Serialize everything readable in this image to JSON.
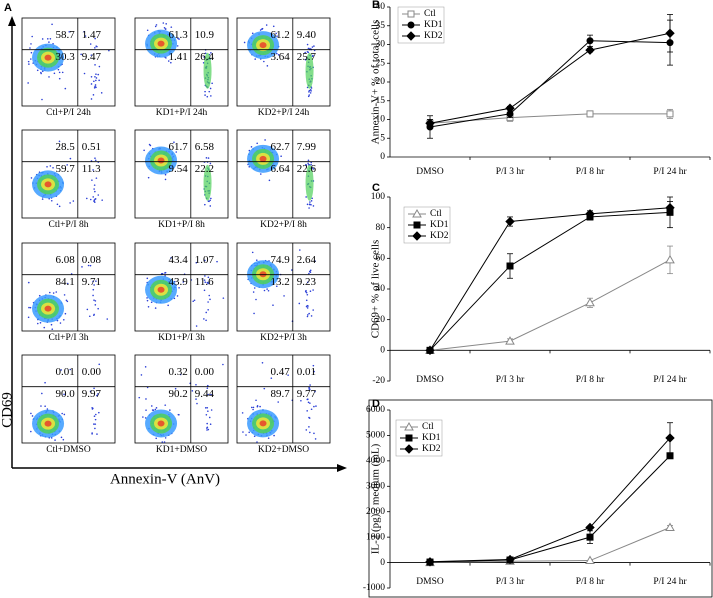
{
  "figure_label": "A",
  "flow_panels": {
    "y_axis_label": "CD69",
    "x_axis_label": "Annexin-V (AnV)",
    "panels": [
      {
        "caption": "Ctl+P/I 24h",
        "q1": "58.7",
        "q2": "1.47",
        "q4": "30.3",
        "q3": "9.47"
      },
      {
        "caption": "KD1+P/I 24h",
        "q1": "61.3",
        "q2": "10.9",
        "q4": "1.41",
        "q3": "26.4"
      },
      {
        "caption": "KD2+P/I 24h",
        "q1": "61.2",
        "q2": "9.40",
        "q4": "3.64",
        "q3": "25.7"
      },
      {
        "caption": "Ctl+P/I 8h",
        "q1": "28.5",
        "q2": "0.51",
        "q4": "59.7",
        "q3": "11.3"
      },
      {
        "caption": "KD1+P/I 8h",
        "q1": "61.7",
        "q2": "6.58",
        "q4": "9.54",
        "q3": "22.2"
      },
      {
        "caption": "KD2+P/I 8h",
        "q1": "62.7",
        "q2": "7.99",
        "q4": "6.64",
        "q3": "22.6"
      },
      {
        "caption": "Ctl+P/I 3h",
        "q1": "6.08",
        "q2": "0.08",
        "q4": "84.1",
        "q3": "9.71"
      },
      {
        "caption": "KD1+P/I 3h",
        "q1": "43.4",
        "q2": "1.07",
        "q4": "43.9",
        "q3": "11.6"
      },
      {
        "caption": "KD2+P/I 3h",
        "q1": "74.9",
        "q2": "2.64",
        "q4": "13.2",
        "q3": "9.23"
      },
      {
        "caption": "Ctl+DMSO",
        "q1": "0.01",
        "q2": "0.00",
        "q4": "90.0",
        "q3": "9.97"
      },
      {
        "caption": "KD1+DMSO",
        "q1": "0.32",
        "q2": "0.00",
        "q4": "90.2",
        "q3": "9.44"
      },
      {
        "caption": "KD2+DMSO",
        "q1": "0.47",
        "q2": "0.01",
        "q4": "89.7",
        "q3": "9.77"
      }
    ]
  },
  "chart_data": [
    {
      "type": "line",
      "panel_label": "B",
      "y_label": "Annexin-V+ % of total cells",
      "categories": [
        "DMSO",
        "P/I 3 hr",
        "P/I 8 hr",
        "P/I 24 hr"
      ],
      "ylim": [
        0,
        40
      ],
      "yticks": [
        0,
        5,
        10,
        15,
        20,
        25,
        30,
        35,
        40
      ],
      "series": [
        {
          "name": "Ctl",
          "color": "#888888",
          "marker": "square",
          "filled": false,
          "values": [
            9,
            10.5,
            11.5,
            11.5
          ],
          "errors": [
            1,
            1,
            0.8,
            1.2
          ]
        },
        {
          "name": "KD1",
          "color": "#000000",
          "marker": "circle",
          "filled": true,
          "values": [
            8,
            11.5,
            31,
            30.5
          ],
          "errors": [
            3,
            1,
            1.5,
            6
          ]
        },
        {
          "name": "KD2",
          "color": "#000000",
          "marker": "diamond",
          "filled": true,
          "values": [
            9,
            13,
            28.5,
            33
          ],
          "errors": [
            1,
            0.5,
            0.5,
            5
          ]
        }
      ]
    },
    {
      "type": "line",
      "panel_label": "C",
      "y_label": "CD69+ % of live cells",
      "categories": [
        "DMSO",
        "P/I 3 hr",
        "P/I 8 hr",
        "P/I 24 hr"
      ],
      "ylim": [
        -20,
        100
      ],
      "yticks": [
        -20,
        0,
        20,
        40,
        60,
        80,
        100
      ],
      "series": [
        {
          "name": "Ctl",
          "color": "#888888",
          "marker": "triangle",
          "filled": false,
          "values": [
            0,
            6,
            31,
            59
          ],
          "errors": [
            0,
            1.5,
            3,
            9
          ]
        },
        {
          "name": "KD1",
          "color": "#000000",
          "marker": "square",
          "filled": true,
          "values": [
            0,
            55,
            87,
            90
          ],
          "errors": [
            0,
            8,
            2,
            10
          ]
        },
        {
          "name": "KD2",
          "color": "#000000",
          "marker": "diamond",
          "filled": true,
          "values": [
            0,
            84,
            89,
            93
          ],
          "errors": [
            0,
            3,
            2,
            4
          ]
        }
      ]
    },
    {
      "type": "line",
      "panel_label": "D",
      "y_label": "IL-2 (pg) / medium (mL)",
      "categories": [
        "DMSO",
        "P/I 3 hr",
        "P/I 8 hr",
        "P/I 24 hr"
      ],
      "ylim": [
        -1000,
        6000
      ],
      "yticks": [
        -1000,
        0,
        1000,
        2000,
        3000,
        4000,
        5000,
        6000
      ],
      "series": [
        {
          "name": "Ctl",
          "color": "#888888",
          "marker": "triangle",
          "filled": false,
          "values": [
            0,
            50,
            80,
            1380
          ],
          "errors": [
            0,
            0,
            0,
            80
          ]
        },
        {
          "name": "KD1",
          "color": "#000000",
          "marker": "square",
          "filled": true,
          "values": [
            20,
            100,
            1000,
            4200
          ],
          "errors": [
            0,
            0,
            250,
            0
          ]
        },
        {
          "name": "KD2",
          "color": "#000000",
          "marker": "diamond",
          "filled": true,
          "values": [
            30,
            120,
            1380,
            4900
          ],
          "errors": [
            0,
            0,
            0,
            600
          ]
        }
      ]
    }
  ]
}
